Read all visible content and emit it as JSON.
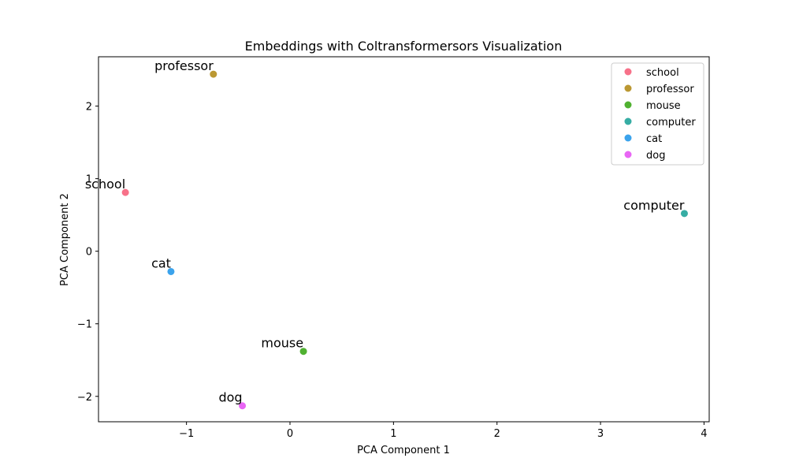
{
  "chart_data": {
    "type": "scatter",
    "title": "Embeddings with Coltransformersors Visualization",
    "xlabel": "PCA Component 1",
    "ylabel": "PCA Component 2",
    "xlim": [
      -1.85,
      4.05
    ],
    "ylim": [
      -2.35,
      2.68
    ],
    "xticks": [
      -1,
      0,
      1,
      2,
      3,
      4
    ],
    "xtick_labels": [
      "−1",
      "0",
      "1",
      "2",
      "3",
      "4"
    ],
    "yticks": [
      -2,
      -1,
      0,
      1,
      2
    ],
    "ytick_labels": [
      "−2",
      "−1",
      "0",
      "1",
      "2"
    ],
    "grid": false,
    "legend_position": "top-right",
    "series": [
      {
        "name": "school",
        "x": -1.59,
        "y": 0.81,
        "color": "#f77189"
      },
      {
        "name": "professor",
        "x": -0.74,
        "y": 2.44,
        "color": "#bb9832"
      },
      {
        "name": "mouse",
        "x": 0.13,
        "y": -1.38,
        "color": "#50b131"
      },
      {
        "name": "computer",
        "x": 3.81,
        "y": 0.52,
        "color": "#36ada4"
      },
      {
        "name": "cat",
        "x": -1.15,
        "y": -0.28,
        "color": "#3ba3ec"
      },
      {
        "name": "dog",
        "x": -0.46,
        "y": -2.13,
        "color": "#e866f4"
      }
    ]
  }
}
